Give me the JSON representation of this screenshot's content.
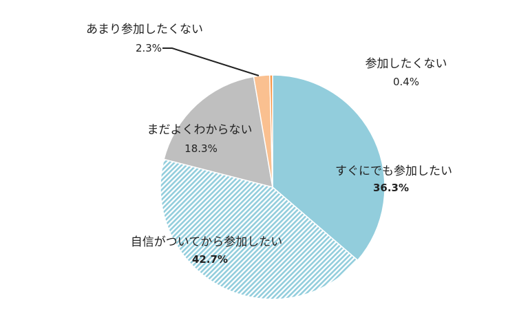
{
  "chart_data": {
    "type": "pie",
    "title": "",
    "start_angle_deg": 0,
    "direction": "clockwise",
    "slices": [
      {
        "label": "すぐにでも参加したい",
        "value": 36.3,
        "value_text": "36.3%",
        "color": "#92CDDC",
        "pattern": "solid",
        "value_bold": true
      },
      {
        "label": "自信がついてから参加したい",
        "value": 42.7,
        "value_text": "42.7%",
        "color": "#92CDDC",
        "pattern": "diagonal-hatch",
        "value_bold": true
      },
      {
        "label": "まだよくわからない",
        "value": 18.3,
        "value_text": "18.3%",
        "color": "#BFBFBF",
        "pattern": "solid",
        "value_bold": false
      },
      {
        "label": "あまり参加したくない",
        "value": 2.3,
        "value_text": "2.3%",
        "color": "#FAC090",
        "pattern": "solid",
        "value_bold": false
      },
      {
        "label": "参加したくない",
        "value": 0.4,
        "value_text": "0.4%",
        "color": "#F79646",
        "pattern": "solid",
        "value_bold": false
      }
    ]
  }
}
